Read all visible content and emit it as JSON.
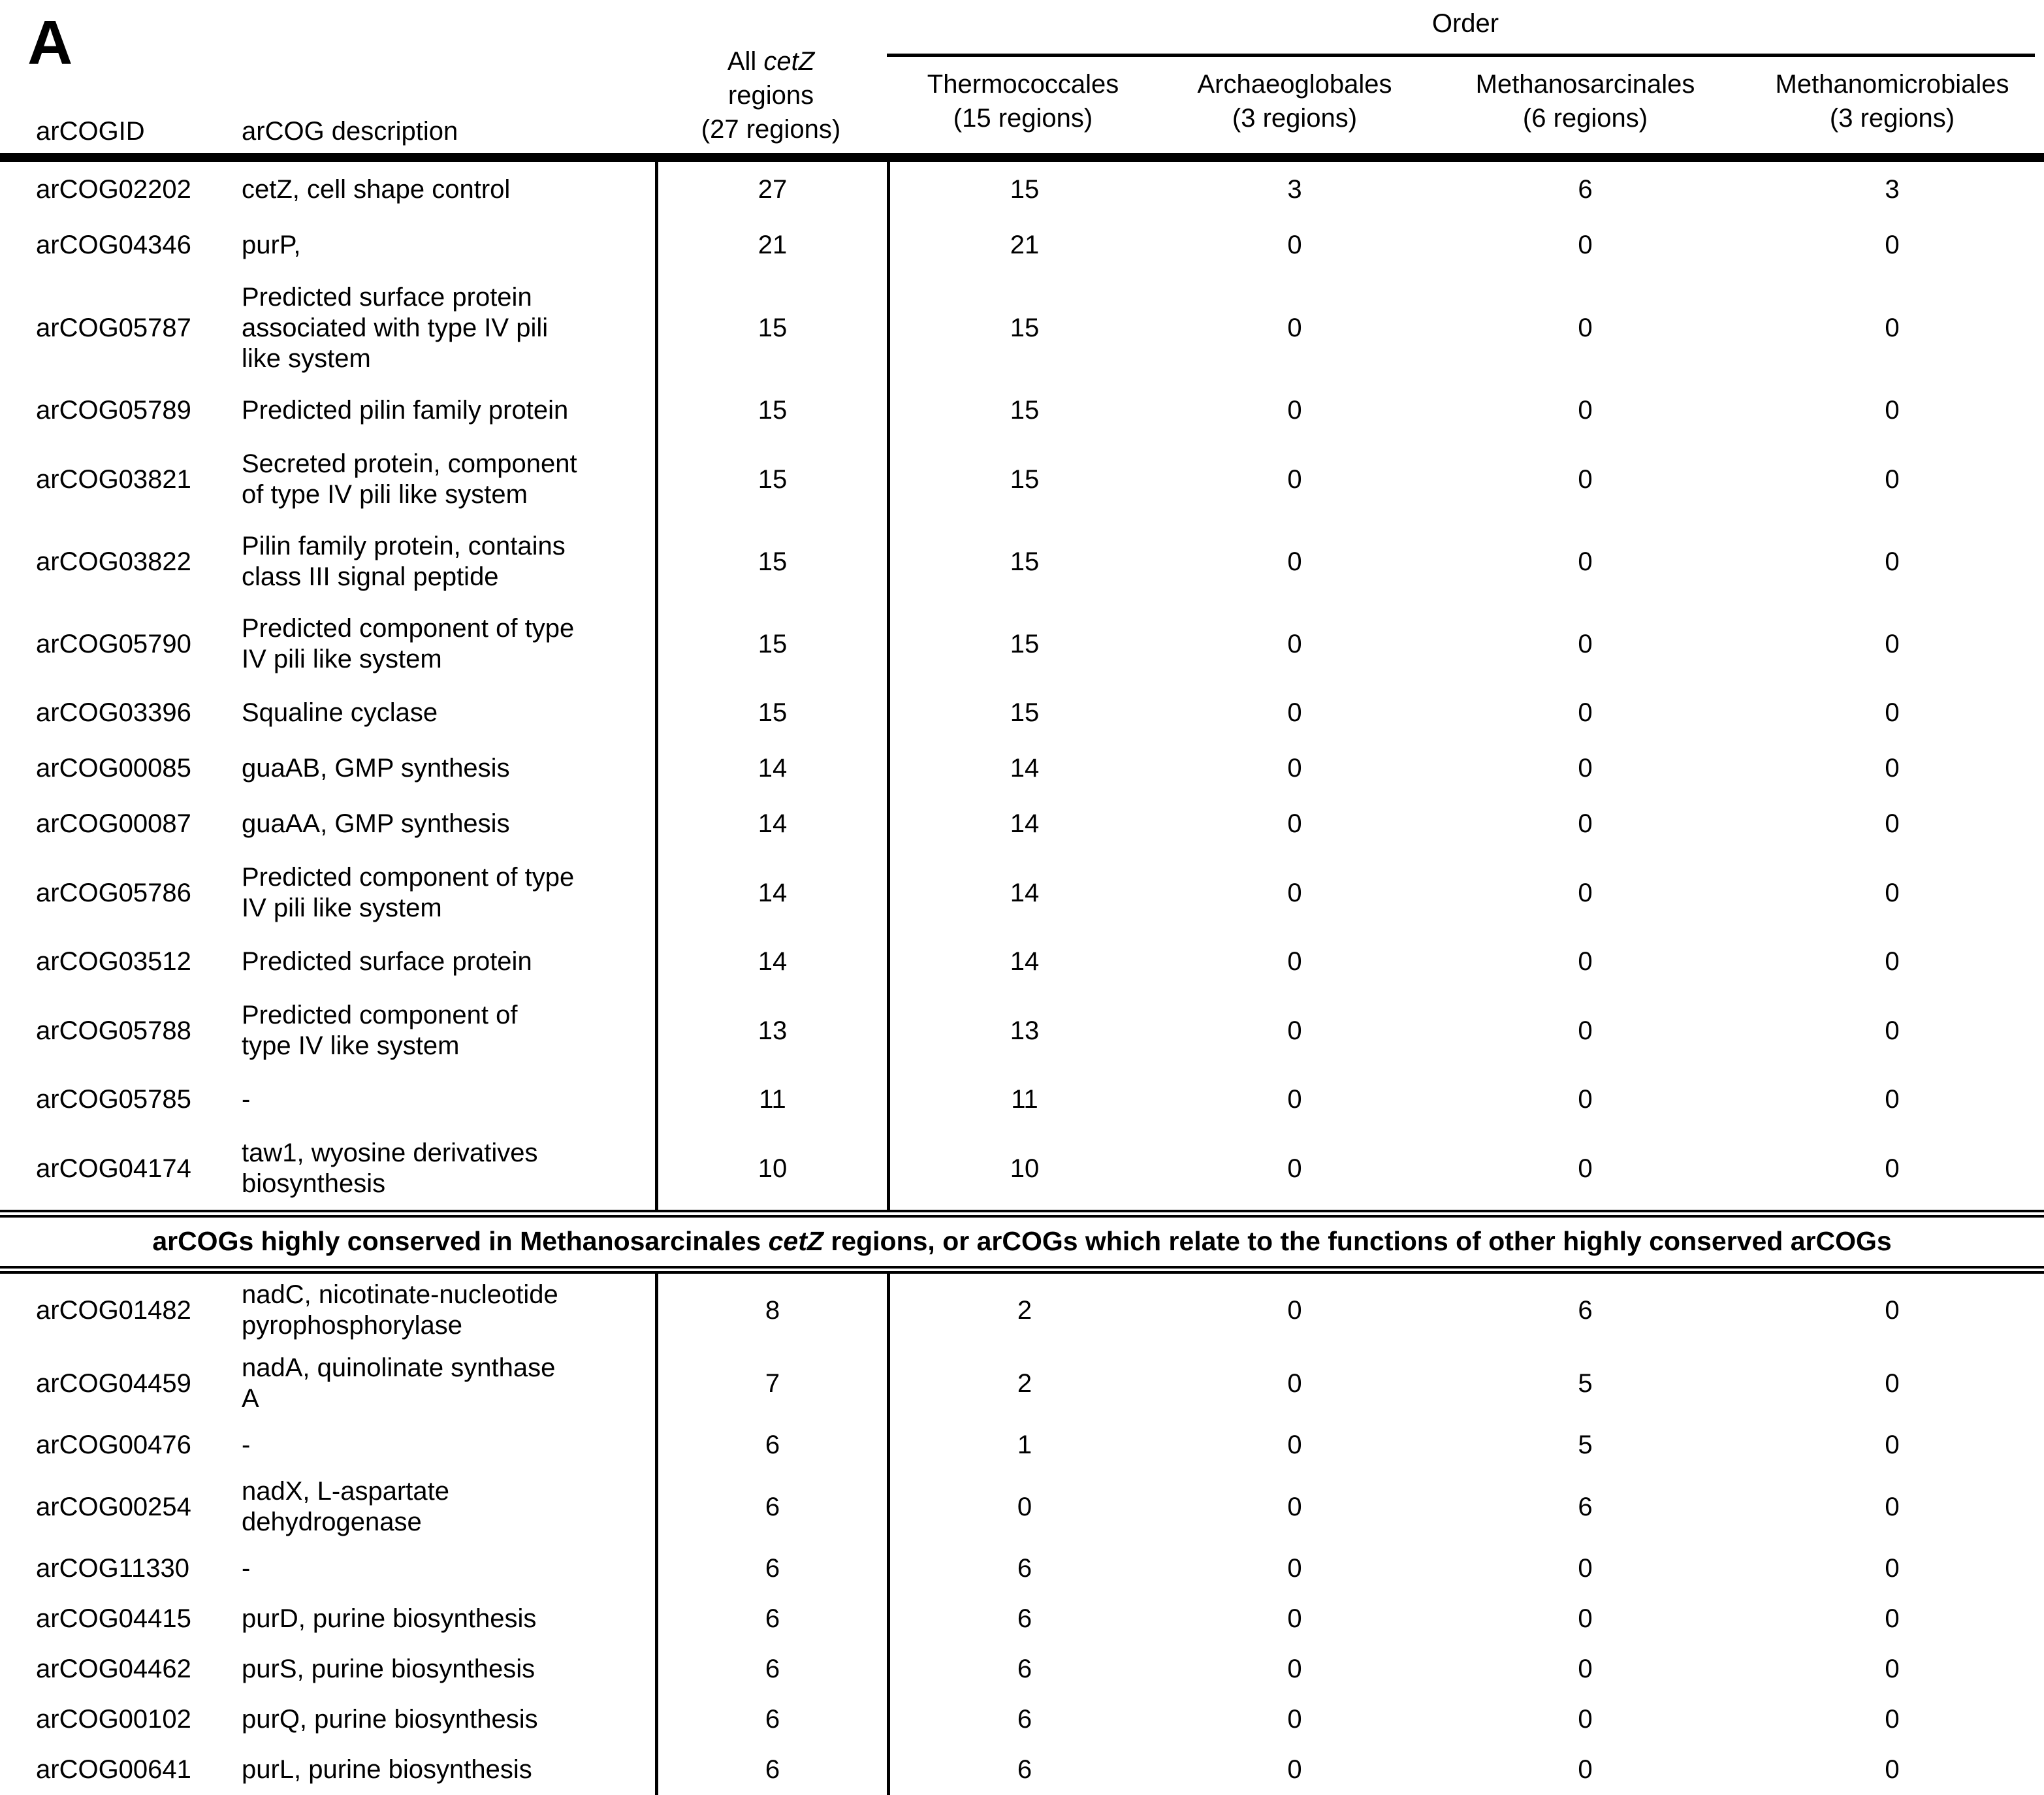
{
  "panel_label": "A",
  "table": {
    "header": {
      "col_id_label": "arCOGID",
      "col_desc_label": "arCOG description",
      "all_cetz": {
        "line1_prefix": "All ",
        "gene": "cetZ",
        "line2": "regions",
        "line3": "(27 regions)"
      },
      "order_label": "Order",
      "order_columns": [
        {
          "name": "Thermococcales",
          "regions": "(15 regions)"
        },
        {
          "name": "Archaeoglobales",
          "regions": "(3 regions)"
        },
        {
          "name": "Methanosarcinales",
          "regions": "(6 regions)"
        },
        {
          "name": "Methanomicrobiales",
          "regions": "(3 regions)"
        }
      ]
    },
    "section1_rows": [
      {
        "id": "arCOG02202",
        "desc": "cetZ, cell shape control",
        "all": 27,
        "thermococcales": 15,
        "archaeoglobales": 3,
        "methanosarcinales": 6,
        "methanomicrobiales": 3
      },
      {
        "id": "arCOG04346",
        "desc": "purP,",
        "all": 21,
        "thermococcales": 21,
        "archaeoglobales": 0,
        "methanosarcinales": 0,
        "methanomicrobiales": 0
      },
      {
        "id": "arCOG05787",
        "desc": "Predicted surface protein\nassociated with type IV pili\nlike system",
        "all": 15,
        "thermococcales": 15,
        "archaeoglobales": 0,
        "methanosarcinales": 0,
        "methanomicrobiales": 0
      },
      {
        "id": "arCOG05789",
        "desc": "Predicted pilin family protein",
        "all": 15,
        "thermococcales": 15,
        "archaeoglobales": 0,
        "methanosarcinales": 0,
        "methanomicrobiales": 0
      },
      {
        "id": "arCOG03821",
        "desc": "Secreted protein, component\nof type IV pili like system",
        "all": 15,
        "thermococcales": 15,
        "archaeoglobales": 0,
        "methanosarcinales": 0,
        "methanomicrobiales": 0
      },
      {
        "id": "arCOG03822",
        "desc": "Pilin family protein, contains\nclass III signal peptide",
        "all": 15,
        "thermococcales": 15,
        "archaeoglobales": 0,
        "methanosarcinales": 0,
        "methanomicrobiales": 0
      },
      {
        "id": "arCOG05790",
        "desc": "Predicted component of type\nIV pili like system",
        "all": 15,
        "thermococcales": 15,
        "archaeoglobales": 0,
        "methanosarcinales": 0,
        "methanomicrobiales": 0
      },
      {
        "id": "arCOG03396",
        "desc": "Squaline cyclase",
        "all": 15,
        "thermococcales": 15,
        "archaeoglobales": 0,
        "methanosarcinales": 0,
        "methanomicrobiales": 0
      },
      {
        "id": "arCOG00085",
        "desc": "guaAB, GMP synthesis",
        "all": 14,
        "thermococcales": 14,
        "archaeoglobales": 0,
        "methanosarcinales": 0,
        "methanomicrobiales": 0
      },
      {
        "id": "arCOG00087",
        "desc": "guaAA, GMP synthesis",
        "all": 14,
        "thermococcales": 14,
        "archaeoglobales": 0,
        "methanosarcinales": 0,
        "methanomicrobiales": 0
      },
      {
        "id": "arCOG05786",
        "desc": "Predicted component of type\nIV pili like system",
        "all": 14,
        "thermococcales": 14,
        "archaeoglobales": 0,
        "methanosarcinales": 0,
        "methanomicrobiales": 0
      },
      {
        "id": "arCOG03512",
        "desc": "Predicted surface protein",
        "all": 14,
        "thermococcales": 14,
        "archaeoglobales": 0,
        "methanosarcinales": 0,
        "methanomicrobiales": 0
      },
      {
        "id": "arCOG05788",
        "desc": "Predicted component of\ntype IV like system",
        "all": 13,
        "thermococcales": 13,
        "archaeoglobales": 0,
        "methanosarcinales": 0,
        "methanomicrobiales": 0
      },
      {
        "id": "arCOG05785",
        "desc": "-",
        "all": 11,
        "thermococcales": 11,
        "archaeoglobales": 0,
        "methanosarcinales": 0,
        "methanomicrobiales": 0
      },
      {
        "id": "arCOG04174",
        "desc": "taw1, wyosine derivatives\nbiosynthesis",
        "all": 10,
        "thermococcales": 10,
        "archaeoglobales": 0,
        "methanosarcinales": 0,
        "methanomicrobiales": 0
      }
    ],
    "section_divider": {
      "prefix": "arCOGs highly conserved in Methanosarcinales ",
      "gene": "cetZ",
      "suffix": " regions, or arCOGs which relate to the functions of other highly conserved arCOGs"
    },
    "section2_rows": [
      {
        "id": "arCOG01482",
        "desc": "nadC, nicotinate-nucleotide\npyrophosphorylase",
        "all": 8,
        "thermococcales": 2,
        "archaeoglobales": 0,
        "methanosarcinales": 6,
        "methanomicrobiales": 0
      },
      {
        "id": "arCOG04459",
        "desc": "nadA, quinolinate synthase\nA",
        "all": 7,
        "thermococcales": 2,
        "archaeoglobales": 0,
        "methanosarcinales": 5,
        "methanomicrobiales": 0
      },
      {
        "id": "arCOG00476",
        "desc": "-",
        "all": 6,
        "thermococcales": 1,
        "archaeoglobales": 0,
        "methanosarcinales": 5,
        "methanomicrobiales": 0
      },
      {
        "id": "arCOG00254",
        "desc": "nadX, L-aspartate\ndehydrogenase",
        "all": 6,
        "thermococcales": 0,
        "archaeoglobales": 0,
        "methanosarcinales": 6,
        "methanomicrobiales": 0
      },
      {
        "id": "arCOG11330",
        "desc": "-",
        "all": 6,
        "thermococcales": 6,
        "archaeoglobales": 0,
        "methanosarcinales": 0,
        "methanomicrobiales": 0
      },
      {
        "id": "arCOG04415",
        "desc": "purD, purine biosynthesis",
        "all": 6,
        "thermococcales": 6,
        "archaeoglobales": 0,
        "methanosarcinales": 0,
        "methanomicrobiales": 0
      },
      {
        "id": "arCOG04462",
        "desc": "purS, purine biosynthesis",
        "all": 6,
        "thermococcales": 6,
        "archaeoglobales": 0,
        "methanosarcinales": 0,
        "methanomicrobiales": 0
      },
      {
        "id": "arCOG00102",
        "desc": "purQ, purine biosynthesis",
        "all": 6,
        "thermococcales": 6,
        "archaeoglobales": 0,
        "methanosarcinales": 0,
        "methanomicrobiales": 0
      },
      {
        "id": "arCOG00641",
        "desc": "purL, purine biosynthesis",
        "all": 6,
        "thermococcales": 6,
        "archaeoglobales": 0,
        "methanosarcinales": 0,
        "methanomicrobiales": 0
      }
    ]
  }
}
